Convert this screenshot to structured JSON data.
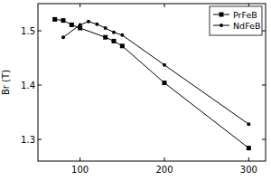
{
  "chart_data": {
    "type": "line",
    "y_label": "Br (T)",
    "series": [
      {
        "name": "PrFeB",
        "color": "#000000",
        "marker": "square",
        "line_style": "solid",
        "x": [
          70,
          80,
          90,
          100,
          130,
          140,
          150,
          200,
          300
        ],
        "values": [
          1.521,
          1.519,
          1.511,
          1.505,
          1.488,
          1.481,
          1.472,
          1.404,
          1.284
        ]
      },
      {
        "name": "NdFeB",
        "color": "#000000",
        "marker": "circle",
        "line_style": "solid",
        "x": [
          80,
          100,
          110,
          120,
          130,
          140,
          150,
          200,
          300
        ],
        "values": [
          1.488,
          1.511,
          1.517,
          1.512,
          1.505,
          1.497,
          1.492,
          1.437,
          1.328
        ]
      }
    ],
    "xlim": [
      50,
      320
    ],
    "xticks": [
      100,
      200,
      300
    ],
    "ylim": [
      1.26,
      1.55
    ],
    "yticks": [
      1.3,
      1.4,
      1.5
    ],
    "legend": "upper right",
    "grid": false
  }
}
